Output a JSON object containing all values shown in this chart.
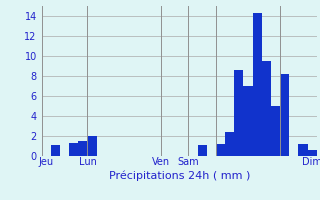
{
  "bar_values": [
    0,
    1.1,
    0,
    1.3,
    1.5,
    2.0,
    0,
    0,
    0,
    0,
    0,
    0,
    0,
    0,
    0,
    0,
    0,
    1.1,
    0,
    1.2,
    2.4,
    8.6,
    7.0,
    14.3,
    9.5,
    5.0,
    8.2,
    0,
    1.2,
    0.6
  ],
  "xlabel": "Précipitations 24h ( mm )",
  "ylim": [
    0,
    15
  ],
  "yticks": [
    0,
    2,
    4,
    6,
    8,
    10,
    12,
    14
  ],
  "bar_color": "#1133cc",
  "grid_color": "#aaaaaa",
  "bg_color": "#dff5f5",
  "text_color": "#2222cc",
  "vline_x": [
    0,
    5,
    13,
    16,
    19,
    26
  ],
  "xtick_positions": [
    0.5,
    5,
    13,
    16,
    19,
    26,
    30
  ],
  "xtick_labels": [
    "Jeu",
    "",
    "Lun",
    "Ven",
    "Sam",
    "",
    "Dim"
  ],
  "xlabel_fontsize": 8,
  "ytick_fontsize": 7,
  "xtick_fontsize": 7
}
